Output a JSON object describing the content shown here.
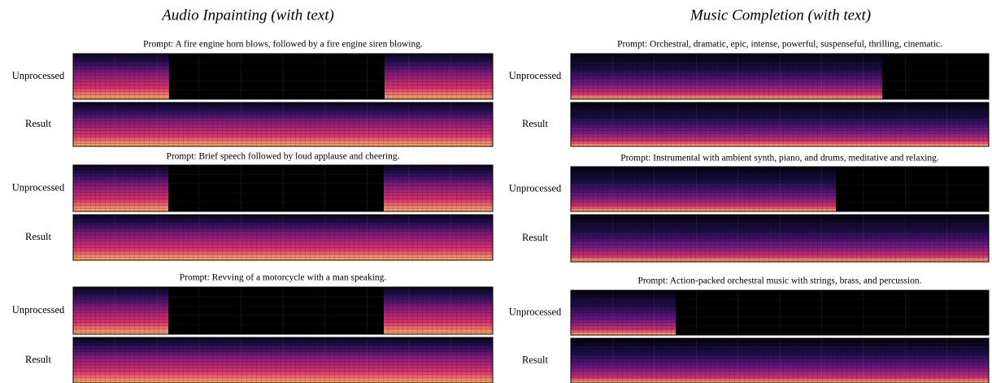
{
  "panels": [
    {
      "title": "Audio Inpainting (with text)",
      "examples": [
        {
          "prompt": "Prompt: A fire engine horn blows, followed by a fire engine siren blowing.",
          "rows": [
            "Unprocessed",
            "Result"
          ]
        },
        {
          "prompt": "Prompt: Brief speech followed by loud applause and cheering.",
          "rows": [
            "Unprocessed",
            "Result"
          ]
        },
        {
          "prompt": "Prompt: Revving of a motorcycle with a man speaking.",
          "rows": [
            "Unprocessed",
            "Result"
          ]
        }
      ]
    },
    {
      "title": "Music Completion (with text)",
      "examples": [
        {
          "prompt": "Prompt: Orchestral, dramatic, epic, intense, powerful, suspenseful, thrilling, cinematic.",
          "rows": [
            "Unprocessed",
            "Result"
          ]
        },
        {
          "prompt": "Prompt: Instrumental with ambient synth, piano, and drums, meditative and relaxing.",
          "rows": [
            "Unprocessed",
            "Result"
          ]
        },
        {
          "prompt": "Prompt: Action-packed orchestral music with strings, brass, and percussion.",
          "rows": [
            "Unprocessed",
            "Result"
          ]
        }
      ]
    }
  ]
}
